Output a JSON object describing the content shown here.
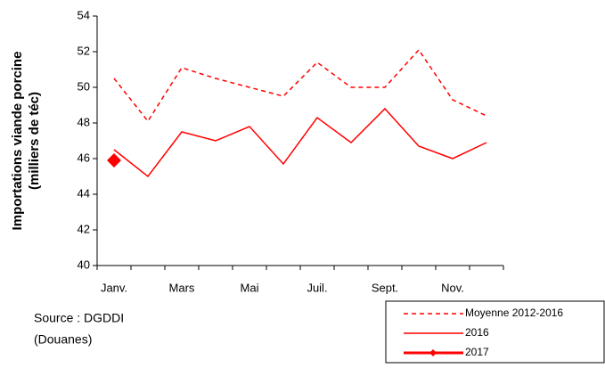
{
  "chart_data": {
    "type": "line",
    "ylabel": [
      "Importations viande porcine",
      "(milliers de téc)"
    ],
    "categories": [
      "Janv.",
      null,
      "Mars",
      null,
      "Mai",
      null,
      "Juil.",
      null,
      "Sept.",
      null,
      "Nov.",
      null
    ],
    "series": [
      {
        "name": "Moyenne 2012-2016",
        "color": "#ff0000",
        "dash": true,
        "values": [
          50.5,
          48.1,
          51.1,
          50.5,
          50.0,
          49.5,
          51.4,
          50.0,
          50.0,
          52.1,
          49.3,
          48.4
        ]
      },
      {
        "name": "2016",
        "color": "#ff0000",
        "values": [
          46.5,
          45.0,
          47.5,
          47.0,
          47.8,
          45.7,
          48.3,
          46.9,
          48.8,
          46.7,
          46.0,
          46.9
        ]
      },
      {
        "name": "2017",
        "color": "#ff0000",
        "marker": "diamond",
        "values": [
          45.9,
          null,
          null,
          null,
          null,
          null,
          null,
          null,
          null,
          null,
          null,
          null
        ]
      }
    ],
    "ylim": [
      40,
      54
    ],
    "yticks": [
      40,
      42,
      44,
      46,
      48,
      50,
      52,
      54
    ],
    "source": [
      "Source : DGDDI",
      "(Douanes)"
    ]
  }
}
